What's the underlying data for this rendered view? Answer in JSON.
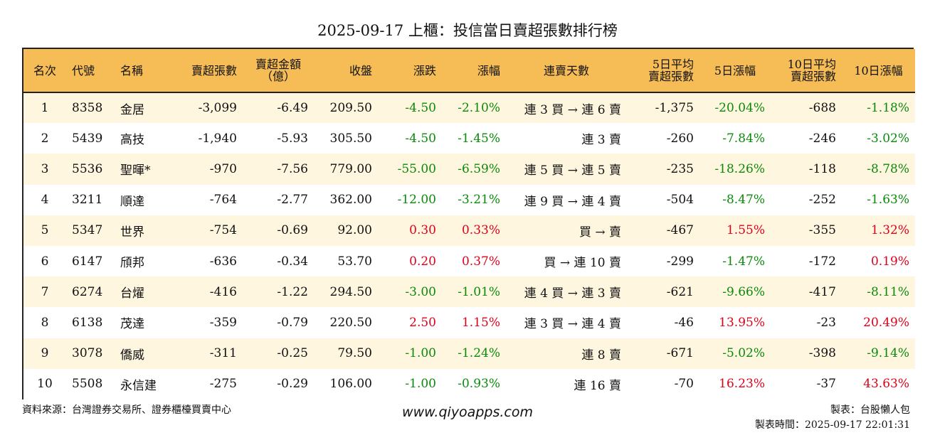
{
  "title": "2025-09-17 上櫃：投信當日賣超張數排行榜",
  "headers": {
    "rank": "名次",
    "code": "代號",
    "name": "名稱",
    "sell_lots": "賣超張數",
    "sell_amt_line1": "賣超金額",
    "sell_amt_line2": "（億）",
    "close": "收盤",
    "change": "漲跌",
    "change_pct": "漲幅",
    "streak": "連賣天數",
    "avg5_line1": "5日平均",
    "avg5_line2": "賣超張數",
    "pct5": "5日漲幅",
    "avg10_line1": "10日平均",
    "avg10_line2": "賣超張數",
    "pct10": "10日漲幅"
  },
  "rows": [
    {
      "rank": "1",
      "code": "8358",
      "name": "金居",
      "sell_lots": "-3,099",
      "sell_amt": "-6.49",
      "close": "209.50",
      "change": "-4.50",
      "change_pct": "-2.10%",
      "streak": "連 3 買 → 連 6 賣",
      "avg5": "-1,375",
      "pct5": "-20.04%",
      "avg10": "-688",
      "pct10": "-1.18%"
    },
    {
      "rank": "2",
      "code": "5439",
      "name": "高技",
      "sell_lots": "-1,940",
      "sell_amt": "-5.93",
      "close": "305.50",
      "change": "-4.50",
      "change_pct": "-1.45%",
      "streak": "連 3 賣",
      "avg5": "-260",
      "pct5": "-7.84%",
      "avg10": "-246",
      "pct10": "-3.02%"
    },
    {
      "rank": "3",
      "code": "5536",
      "name": "聖暉*",
      "sell_lots": "-970",
      "sell_amt": "-7.56",
      "close": "779.00",
      "change": "-55.00",
      "change_pct": "-6.59%",
      "streak": "連 5 買 → 連 5 賣",
      "avg5": "-235",
      "pct5": "-18.26%",
      "avg10": "-118",
      "pct10": "-8.78%"
    },
    {
      "rank": "4",
      "code": "3211",
      "name": "順達",
      "sell_lots": "-764",
      "sell_amt": "-2.77",
      "close": "362.00",
      "change": "-12.00",
      "change_pct": "-3.21%",
      "streak": "連 9 買 → 連 4 賣",
      "avg5": "-504",
      "pct5": "-8.47%",
      "avg10": "-252",
      "pct10": "-1.63%"
    },
    {
      "rank": "5",
      "code": "5347",
      "name": "世界",
      "sell_lots": "-754",
      "sell_amt": "-0.69",
      "close": "92.00",
      "change": "0.30",
      "change_pct": "0.33%",
      "streak": "買 → 賣",
      "avg5": "-467",
      "pct5": "1.55%",
      "avg10": "-355",
      "pct10": "1.32%"
    },
    {
      "rank": "6",
      "code": "6147",
      "name": "頎邦",
      "sell_lots": "-636",
      "sell_amt": "-0.34",
      "close": "53.70",
      "change": "0.20",
      "change_pct": "0.37%",
      "streak": "買 → 連 10 賣",
      "avg5": "-299",
      "pct5": "-1.47%",
      "avg10": "-172",
      "pct10": "0.19%"
    },
    {
      "rank": "7",
      "code": "6274",
      "name": "台燿",
      "sell_lots": "-416",
      "sell_amt": "-1.22",
      "close": "294.50",
      "change": "-3.00",
      "change_pct": "-1.01%",
      "streak": "連 4 買 → 連 3 賣",
      "avg5": "-621",
      "pct5": "-9.66%",
      "avg10": "-417",
      "pct10": "-8.11%"
    },
    {
      "rank": "8",
      "code": "6138",
      "name": "茂達",
      "sell_lots": "-359",
      "sell_amt": "-0.79",
      "close": "220.50",
      "change": "2.50",
      "change_pct": "1.15%",
      "streak": "連 3 買 → 連 4 賣",
      "avg5": "-46",
      "pct5": "13.95%",
      "avg10": "-23",
      "pct10": "20.49%"
    },
    {
      "rank": "9",
      "code": "3078",
      "name": "僑威",
      "sell_lots": "-311",
      "sell_amt": "-0.25",
      "close": "79.50",
      "change": "-1.00",
      "change_pct": "-1.24%",
      "streak": "連 8 賣",
      "avg5": "-671",
      "pct5": "-5.02%",
      "avg10": "-398",
      "pct10": "-9.14%"
    },
    {
      "rank": "10",
      "code": "5508",
      "name": "永信建",
      "sell_lots": "-275",
      "sell_amt": "-0.29",
      "close": "106.00",
      "change": "-1.00",
      "change_pct": "-0.93%",
      "streak": "連 16 賣",
      "avg5": "-70",
      "pct5": "16.23%",
      "avg10": "-37",
      "pct10": "43.63%"
    }
  ],
  "colors": {
    "header_bg": "#f6bd57",
    "odd_row_bg": "#fff6e0",
    "positive": "#e0001a",
    "negative": "#0a8a0a"
  },
  "footer": {
    "source": "資料來源：台灣證券交易所、證券櫃檯買賣中心",
    "website": "www.qiyoapps.com",
    "author": "製表：台股懶人包",
    "timestamp": "製表時間：2025-09-17 22:01:31"
  }
}
